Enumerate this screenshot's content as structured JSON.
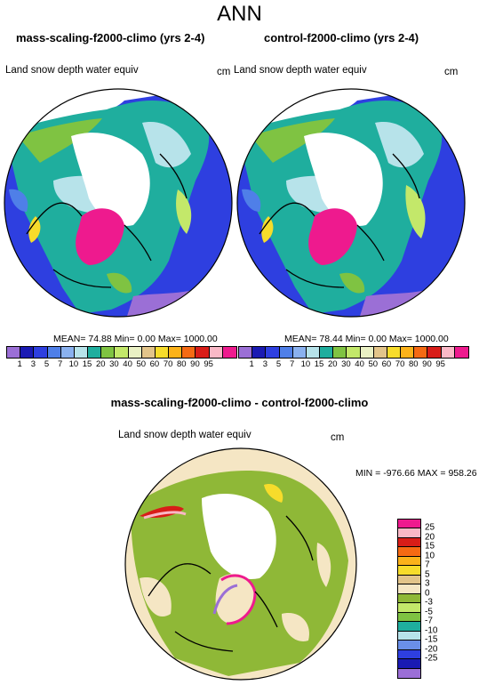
{
  "main_title": "ANN",
  "panel_left": {
    "title": "mass-scaling-f2000-climo (yrs 2-4)",
    "variable": "Land snow depth water equiv",
    "units": "cm",
    "stats": "MEAN= 74.88 Min= 0.00 Max= 1000.00"
  },
  "panel_right": {
    "title": "control-f2000-climo (yrs 2-4)",
    "variable": "Land snow depth water equiv",
    "units": "cm",
    "stats": "MEAN= 78.44 Min= 0.00 Max= 1000.00"
  },
  "panel_diff": {
    "title": "mass-scaling-f2000-climo - control-f2000-climo",
    "variable": "Land snow depth water equiv",
    "units": "cm",
    "stats": "MIN = -976.66 MAX = 958.26"
  },
  "colorbar_abs": {
    "labels": [
      "1",
      "3",
      "5",
      "7",
      "10",
      "15",
      "20",
      "30",
      "40",
      "50",
      "60",
      "70",
      "80",
      "90",
      "95"
    ],
    "colors": [
      "#9b6fd6",
      "#1a1ab3",
      "#2e3fe0",
      "#4f7fe8",
      "#8ab1ef",
      "#b7e3ea",
      "#1fae9e",
      "#7fc342",
      "#c3e86a",
      "#e9f0c4",
      "#e2c48a",
      "#f7dc2b",
      "#fbb21a",
      "#f56a13",
      "#d81d18",
      "#f9b8c6",
      "#ee1a8e"
    ]
  },
  "colorbar_diff": {
    "labels": [
      "25",
      "20",
      "15",
      "10",
      "7",
      "5",
      "3",
      "0",
      "-3",
      "-5",
      "-7",
      "-10",
      "-15",
      "-20",
      "-25"
    ],
    "colors": [
      "#ee1a8e",
      "#f9b8c6",
      "#d81d18",
      "#f56a13",
      "#fbb21a",
      "#f7dc2b",
      "#e2c48a",
      "#f5e6c4",
      "#8fb837",
      "#c3e86a",
      "#7fc342",
      "#1fae9e",
      "#b7e3ea",
      "#6a8fe8",
      "#2e3fe0",
      "#1a1ab3",
      "#9b6fd6"
    ]
  },
  "map_colors": {
    "ocean": "#ffffff",
    "deep_snow": "#2e3fe0",
    "mid_snow": "#7fc342",
    "teal_snow": "#1fae9e",
    "light_snow": "#b7e3ea",
    "greenland": "#ee1a8e",
    "diff_land": "#8fb837",
    "diff_neutral": "#f5e6c4"
  }
}
